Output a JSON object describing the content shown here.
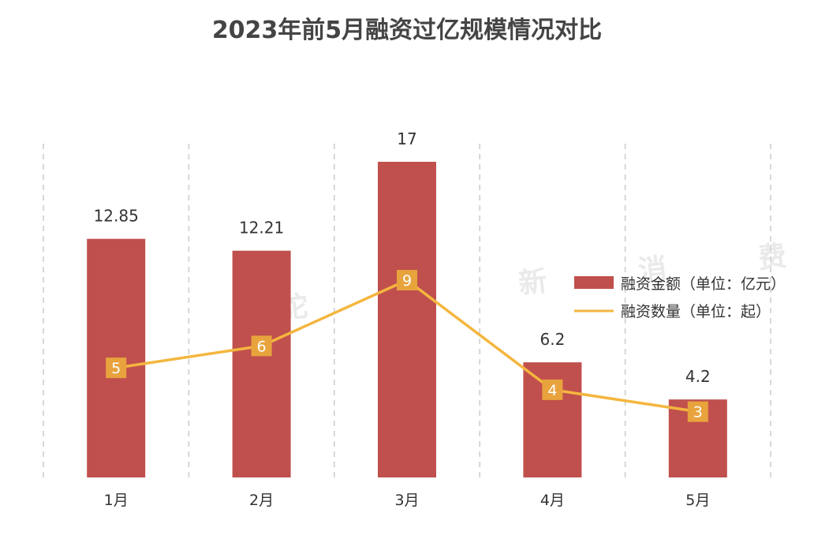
{
  "chart_data": {
    "type": "bar",
    "title": "2023年前5月融资过亿规模情况对比",
    "categories": [
      "1月",
      "2月",
      "3月",
      "4月",
      "5月"
    ],
    "series": [
      {
        "name": "融资金额（单位：亿元）",
        "type": "bar",
        "values": [
          12.85,
          12.21,
          17,
          6.2,
          4.2
        ],
        "labels": [
          "12.85",
          "12.21",
          "17",
          "6.2",
          "4.2"
        ],
        "color": "#c0504d"
      },
      {
        "name": "融资数量（单位：起）",
        "type": "line",
        "values": [
          5,
          6,
          9,
          4,
          3
        ],
        "labels": [
          "5",
          "6",
          "9",
          "4",
          "3"
        ],
        "color": "#f4b63f",
        "marker_color": "#e8a33d"
      }
    ],
    "bar_axis": {
      "min": 0,
      "max": 17
    },
    "line_axis": {
      "min": 0,
      "max": 14.4
    },
    "grid": "vertical dashed",
    "legend_position": "right",
    "watermark": "驼 鹿 新 消 费"
  }
}
